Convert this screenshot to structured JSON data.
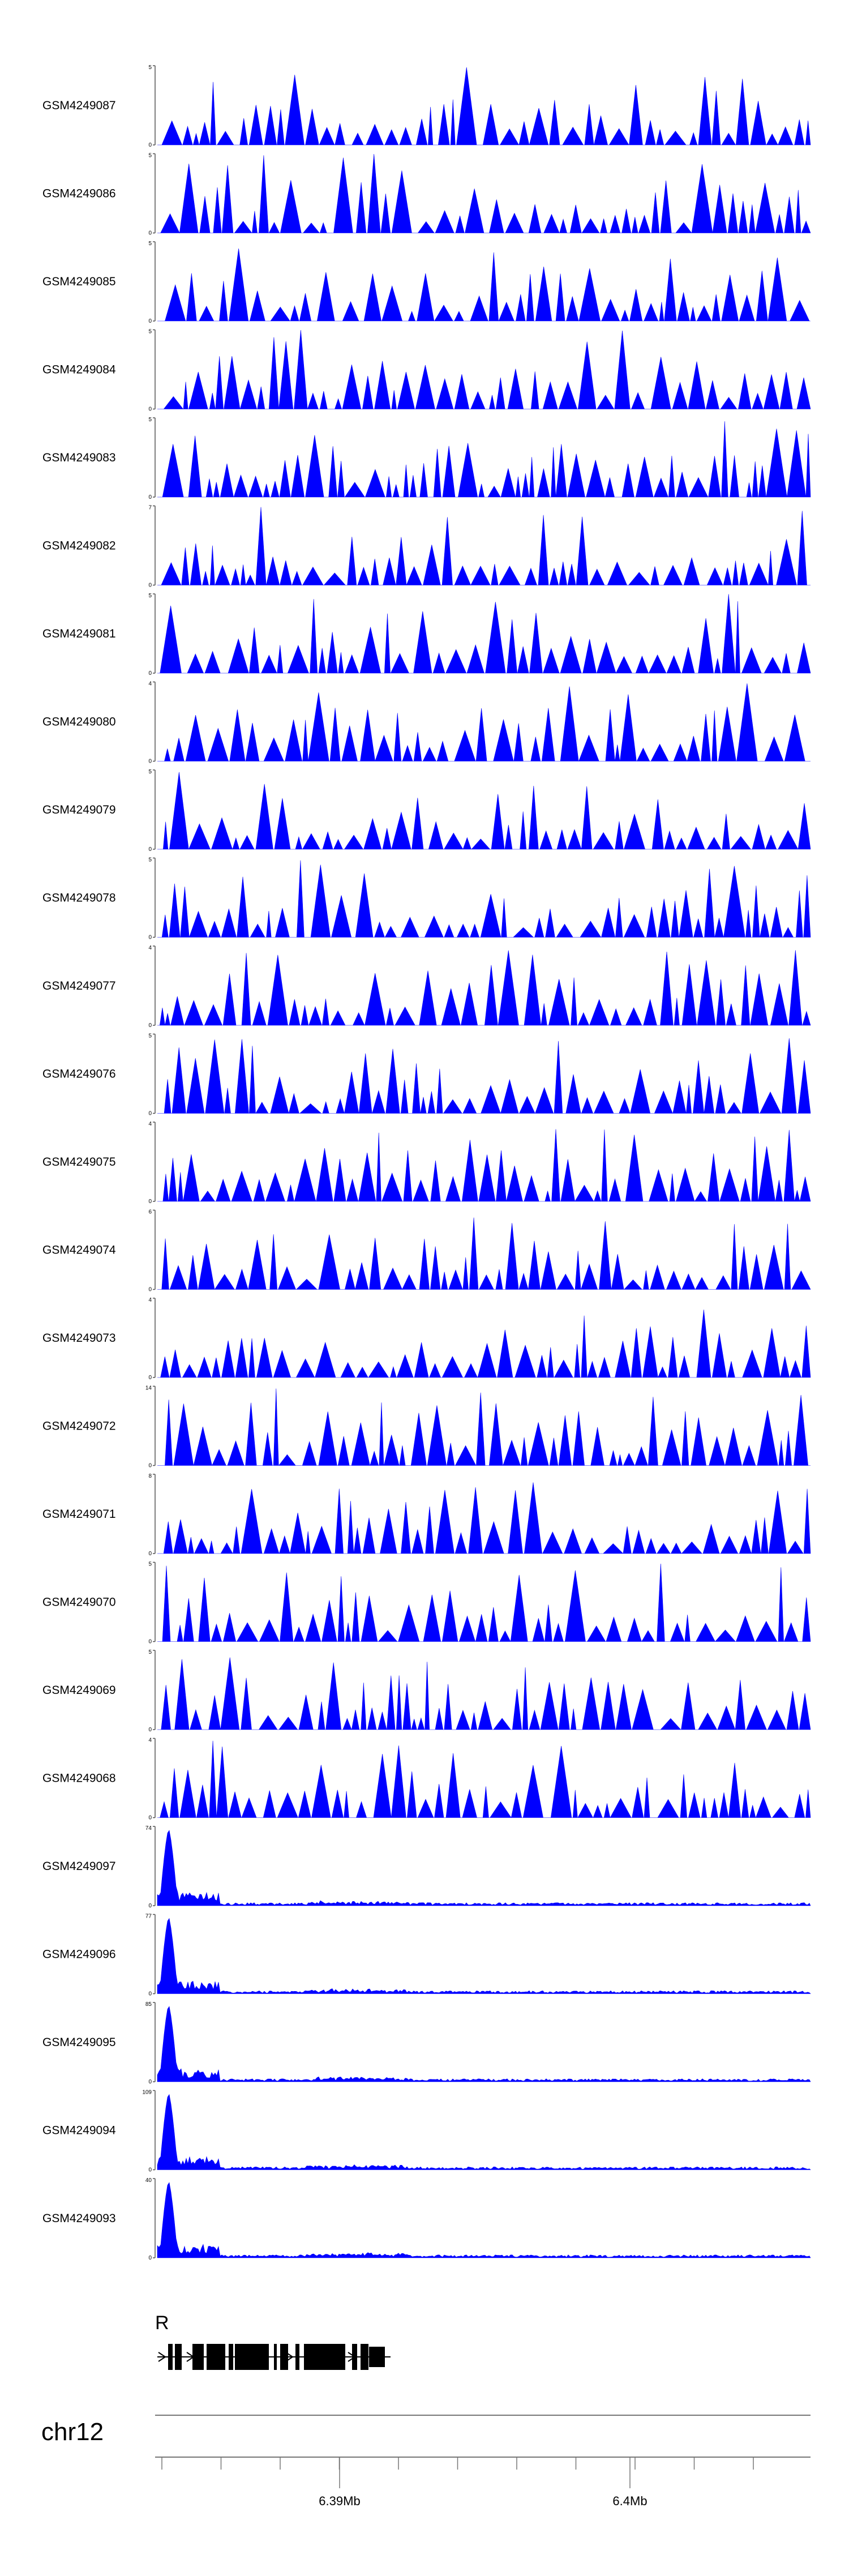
{
  "chart_data": {
    "type": "area",
    "tracks": [
      {
        "name": "GSM4249087",
        "ymax": "5",
        "ymin": "0",
        "max": 5,
        "seed": 87,
        "style": "spiky"
      },
      {
        "name": "GSM4249086",
        "ymax": "5",
        "ymin": "0",
        "max": 5,
        "seed": 86,
        "style": "spiky"
      },
      {
        "name": "GSM4249085",
        "ymax": "5",
        "ymin": "0",
        "max": 5,
        "seed": 85,
        "style": "spiky"
      },
      {
        "name": "GSM4249084",
        "ymax": "5",
        "ymin": "0",
        "max": 5,
        "seed": 84,
        "style": "spiky"
      },
      {
        "name": "GSM4249083",
        "ymax": "5",
        "ymin": "0",
        "max": 5,
        "seed": 83,
        "style": "spiky"
      },
      {
        "name": "GSM4249082",
        "ymax": "7",
        "ymin": "0",
        "max": 7,
        "seed": 82,
        "style": "spiky"
      },
      {
        "name": "GSM4249081",
        "ymax": "5",
        "ymin": "0",
        "max": 5,
        "seed": 81,
        "style": "spiky"
      },
      {
        "name": "GSM4249080",
        "ymax": "4",
        "ymin": "0",
        "max": 4,
        "seed": 80,
        "style": "spiky"
      },
      {
        "name": "GSM4249079",
        "ymax": "5",
        "ymin": "0",
        "max": 5,
        "seed": 79,
        "style": "spiky"
      },
      {
        "name": "GSM4249078",
        "ymax": "5",
        "ymin": "0",
        "max": 5,
        "seed": 78,
        "style": "spiky"
      },
      {
        "name": "GSM4249077",
        "ymax": "4",
        "ymin": "0",
        "max": 4,
        "seed": 77,
        "style": "spiky"
      },
      {
        "name": "GSM4249076",
        "ymax": "5",
        "ymin": "0",
        "max": 5,
        "seed": 76,
        "style": "spiky"
      },
      {
        "name": "GSM4249075",
        "ymax": "4",
        "ymin": "0",
        "max": 4,
        "seed": 75,
        "style": "spiky"
      },
      {
        "name": "GSM4249074",
        "ymax": "6",
        "ymin": "0",
        "max": 6,
        "seed": 74,
        "style": "spiky"
      },
      {
        "name": "GSM4249073",
        "ymax": "4",
        "ymin": "0",
        "max": 4,
        "seed": 73,
        "style": "spiky"
      },
      {
        "name": "GSM4249072",
        "ymax": "14",
        "ymin": "0",
        "max": 14,
        "seed": 72,
        "style": "spiky"
      },
      {
        "name": "GSM4249071",
        "ymax": "8",
        "ymin": "0",
        "max": 8,
        "seed": 71,
        "style": "spiky"
      },
      {
        "name": "GSM4249070",
        "ymax": "5",
        "ymin": "0",
        "max": 5,
        "seed": 70,
        "style": "spiky"
      },
      {
        "name": "GSM4249069",
        "ymax": "5",
        "ymin": "0",
        "max": 5,
        "seed": 69,
        "style": "spiky"
      },
      {
        "name": "GSM4249068",
        "ymax": "4",
        "ymin": "0",
        "max": 4,
        "seed": 68,
        "style": "spiky"
      },
      {
        "name": "GSM4249097",
        "ymax": "74",
        "ymin": "0",
        "max": 74,
        "seed": 97,
        "style": "peak"
      },
      {
        "name": "GSM4249096",
        "ymax": "77",
        "ymin": "0",
        "max": 77,
        "seed": 96,
        "style": "peak"
      },
      {
        "name": "GSM4249095",
        "ymax": "85",
        "ymin": "0",
        "max": 85,
        "seed": 95,
        "style": "peak"
      },
      {
        "name": "GSM4249094",
        "ymax": "109",
        "ymin": "0",
        "max": 109,
        "seed": 94,
        "style": "peak"
      },
      {
        "name": "GSM4249093",
        "ymax": "40",
        "ymin": "0",
        "max": 40,
        "seed": 93,
        "style": "peak"
      }
    ],
    "gene": {
      "label": "R",
      "strand": "+"
    },
    "chromosome": "chr12",
    "axis": {
      "tick_labels": [
        "6.39Mb",
        "6.4Mb"
      ]
    },
    "colors": {
      "signal": "#0000ff",
      "gene": "#000000",
      "axis": "#555555"
    }
  }
}
